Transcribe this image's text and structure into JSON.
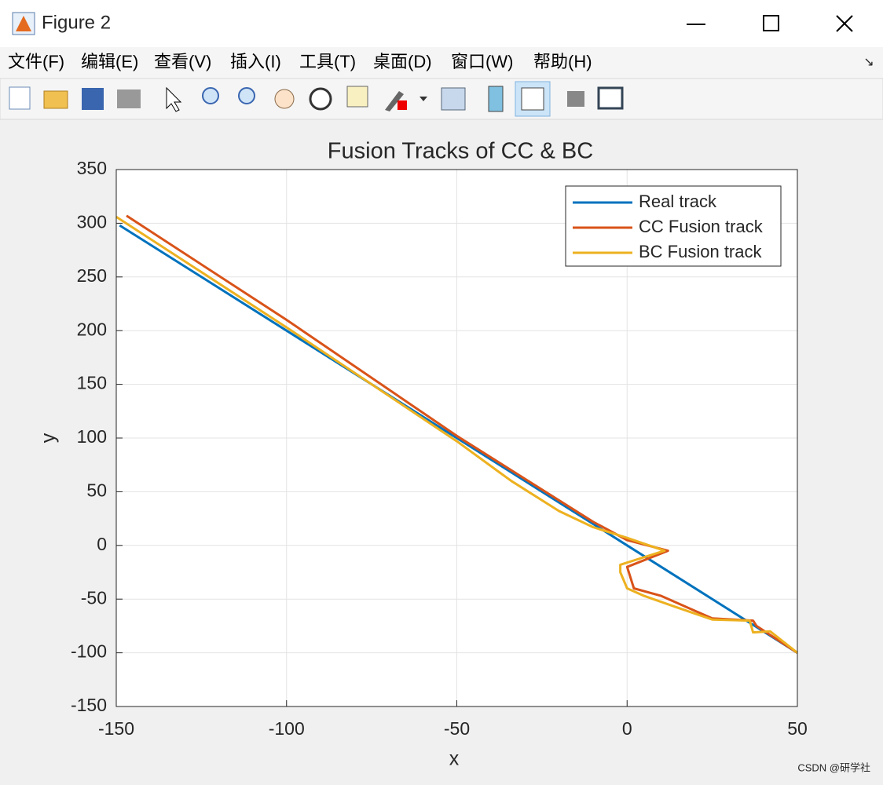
{
  "window": {
    "title": "Figure 2",
    "menu": [
      "文件(F)",
      "编辑(E)",
      "查看(V)",
      "插入(I)",
      "工具(T)",
      "桌面(D)",
      "窗口(W)",
      "帮助(H)"
    ],
    "watermark": "CSDN @研学社"
  },
  "chart_data": {
    "type": "line",
    "title": "Fusion Tracks of CC & BC",
    "x_label": "x",
    "y_label": "y",
    "xlim": [
      -150,
      50
    ],
    "ylim": [
      -150,
      350
    ],
    "xticks": [
      -150,
      -100,
      -50,
      0,
      50
    ],
    "yticks": [
      -150,
      -100,
      -50,
      0,
      50,
      100,
      150,
      200,
      250,
      300,
      350
    ],
    "grid": true,
    "legend": "northeast",
    "series": [
      {
        "name": "Real track",
        "color": "#0072bd",
        "x": [
          -149,
          -100,
          -50,
          0,
          50
        ],
        "values": [
          298,
          200,
          100,
          0,
          -100
        ]
      },
      {
        "name": "CC Fusion track",
        "color": "#d95319",
        "x": [
          -147,
          -100,
          -50,
          -30,
          -10,
          0,
          12,
          0,
          2,
          10,
          25,
          37,
          38,
          50
        ],
        "values": [
          307,
          210,
          102,
          62,
          22,
          5,
          -5,
          -20,
          -40,
          -47,
          -68,
          -70,
          -75,
          -100
        ]
      },
      {
        "name": "BC Fusion track",
        "color": "#edb120",
        "x": [
          -150,
          -100,
          -50,
          -34,
          -20,
          -10,
          0,
          11,
          -2,
          -2,
          0,
          5,
          14,
          25,
          36,
          37,
          42,
          50
        ],
        "values": [
          306,
          203,
          97,
          60,
          32,
          17,
          7,
          -5,
          -18,
          -25,
          -40,
          -47,
          -57,
          -69,
          -70,
          -81,
          -80,
          -100
        ]
      }
    ]
  }
}
